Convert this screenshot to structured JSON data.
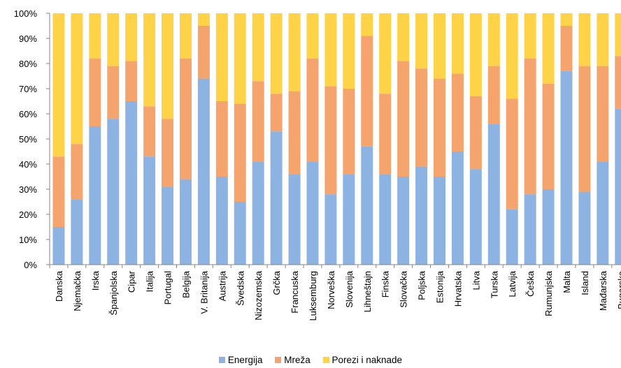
{
  "chart_data": {
    "type": "bar",
    "stacked": true,
    "title": "",
    "xlabel": "",
    "ylabel": "",
    "ylim": [
      0,
      100
    ],
    "yticks": [
      "0%",
      "10%",
      "20%",
      "30%",
      "40%",
      "50%",
      "60%",
      "70%",
      "80%",
      "90%",
      "100%"
    ],
    "grid": false,
    "legend_position": "bottom",
    "categories": [
      "Danska",
      "Njemačka",
      "Irska",
      "Španjolska",
      "Cipar",
      "Italija",
      "Portugal",
      "Belgija",
      "V. Britanija",
      "Austrija",
      "Švedska",
      "Nizozemska",
      "Grčka",
      "Francuska",
      "Luksemburg",
      "Norveška",
      "Slovenija",
      "Lihneštajn",
      "Finska",
      "Slovačka",
      "Poljska",
      "Estonija",
      "Hrvatska",
      "Litva",
      "Turska",
      "Latvija",
      "Češka",
      "Rumunjska",
      "Malta",
      "Island",
      "Mađarska",
      "Bugarska"
    ],
    "series": [
      {
        "name": "Energija",
        "color": "#8db3e2",
        "values": [
          15,
          26,
          55,
          58,
          65,
          43,
          31,
          34,
          74,
          35,
          25,
          41,
          53,
          36,
          41,
          28,
          36,
          47,
          36,
          35,
          39,
          35,
          45,
          38,
          56,
          22,
          28,
          30,
          77,
          29,
          41,
          62
        ]
      },
      {
        "name": "Mreža",
        "color": "#f4a46c",
        "values": [
          28,
          22,
          27,
          21,
          16,
          20,
          27,
          48,
          21,
          30,
          39,
          32,
          15,
          33,
          41,
          43,
          34,
          44,
          32,
          46,
          39,
          39,
          31,
          29,
          23,
          44,
          54,
          42,
          18,
          50,
          38,
          21
        ]
      },
      {
        "name": "Porezi i naknade",
        "color": "#ffd347",
        "values": [
          57,
          52,
          18,
          21,
          19,
          37,
          42,
          18,
          5,
          35,
          36,
          27,
          32,
          31,
          18,
          29,
          30,
          9,
          32,
          19,
          22,
          26,
          24,
          33,
          21,
          34,
          18,
          28,
          5,
          21,
          21,
          17
        ]
      }
    ]
  }
}
